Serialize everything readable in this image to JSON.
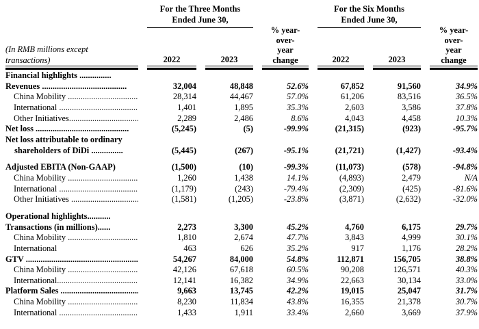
{
  "page": {
    "background": "#ffffff",
    "text_color": "#000000"
  },
  "header": {
    "three_months": {
      "line1": "For the Three Months",
      "line2": "Ended June 30,"
    },
    "six_months": {
      "line1": "For the Six Months",
      "line2": "Ended June 30,"
    },
    "pct_change_lines": [
      "% year-",
      "over-",
      "year",
      "change"
    ],
    "note_lines": [
      "(In RMB millions except",
      "transactions)"
    ],
    "years": {
      "tm_2022": "2022",
      "tm_2023": "2023",
      "sm_2022": "2022",
      "sm_2023": "2023"
    }
  },
  "table": {
    "column_keys": [
      "tm_2022",
      "tm_2023",
      "tm_pct_change",
      "sm_2022",
      "sm_2023",
      "sm_pct_change"
    ],
    "rows": [
      {
        "type": "data",
        "bold": true,
        "indent": 0,
        "label": "Financial highlights ...............",
        "values": [
          "",
          "",
          "",
          "",
          "",
          ""
        ]
      },
      {
        "type": "data",
        "bold": true,
        "indent": 0,
        "label": "Revenues ........................................",
        "values": [
          "32,004",
          "48,848",
          "52.6%",
          "67,852",
          "91,560",
          "34.9%"
        ]
      },
      {
        "type": "data",
        "bold": false,
        "indent": 1,
        "label": "China Mobility ....................................",
        "values": [
          "28,314",
          "44,467",
          "57.0%",
          "61,206",
          "83,516",
          "36.5%"
        ]
      },
      {
        "type": "data",
        "bold": false,
        "indent": 1,
        "label": "International .......................................",
        "values": [
          "1,401",
          "1,895",
          "35.3%",
          "2,603",
          "3,586",
          "37.8%"
        ]
      },
      {
        "type": "data",
        "bold": false,
        "indent": 1,
        "label": "Other Initiatives...................................",
        "values": [
          "2,289",
          "2,486",
          "8.6%",
          "4,043",
          "4,458",
          "10.3%"
        ]
      },
      {
        "type": "data",
        "bold": true,
        "indent": 0,
        "label": "Net loss ............................................",
        "values": [
          "(5,245)",
          "(5)",
          "-99.9%",
          "(21,315)",
          "(923)",
          "-95.7%"
        ]
      },
      {
        "type": "data",
        "bold": true,
        "indent": 0,
        "label_lines": [
          "Net loss attributable to ordinary",
          "shareholders of DiDi ..............."
        ],
        "values": [
          "(5,445)",
          "(267)",
          "-95.1%",
          "(21,721)",
          "(1,427)",
          "-93.4%"
        ]
      },
      {
        "type": "spacer"
      },
      {
        "type": "data",
        "bold": true,
        "indent": 0,
        "label": "Adjusted EBITA (Non-GAAP)",
        "values": [
          "(1,500)",
          "(10)",
          "-99.3%",
          "(11,073)",
          "(578)",
          "-94.8%"
        ]
      },
      {
        "type": "data",
        "bold": false,
        "indent": 1,
        "label": "China Mobility ....................................",
        "values": [
          "1,260",
          "1,438",
          "14.1%",
          "(4,893)",
          "2,479",
          "N/A"
        ]
      },
      {
        "type": "data",
        "bold": false,
        "indent": 1,
        "label": "International .......................................",
        "values": [
          "(1,179)",
          "(243)",
          "-79.4%",
          "(2,309)",
          "(425)",
          "-81.6%"
        ]
      },
      {
        "type": "data",
        "bold": false,
        "indent": 1,
        "label": "Other Initiatives ..................................",
        "values": [
          "(1,581)",
          "(1,205)",
          "-23.8%",
          "(3,871)",
          "(2,632)",
          "-32.0%"
        ]
      },
      {
        "type": "spacer"
      },
      {
        "type": "data",
        "bold": true,
        "indent": 0,
        "label": "Operational highlights...........",
        "values": [
          "",
          "",
          "",
          "",
          "",
          ""
        ]
      },
      {
        "type": "data",
        "bold": true,
        "indent": 0,
        "label": "Transactions (in millions)......",
        "values": [
          "2,273",
          "3,300",
          "45.2%",
          "4,760",
          "6,175",
          "29.7%"
        ]
      },
      {
        "type": "data",
        "bold": false,
        "indent": 1,
        "label": "China Mobility ....................................",
        "values": [
          "1,810",
          "2,674",
          "47.7%",
          "3,843",
          "4,999",
          "30.1%"
        ]
      },
      {
        "type": "data",
        "bold": false,
        "indent": 1,
        "label": "International",
        "values": [
          "463",
          "626",
          "35.2%",
          "917",
          "1,176",
          "28.2%"
        ]
      },
      {
        "type": "data",
        "bold": true,
        "indent": 0,
        "label": "GTV ...................................................................",
        "values": [
          "54,267",
          "84,000",
          "54.8%",
          "112,871",
          "156,705",
          "38.8%"
        ]
      },
      {
        "type": "data",
        "bold": false,
        "indent": 1,
        "label": "China Mobility ....................................",
        "values": [
          "42,126",
          "67,618",
          "60.5%",
          "90,208",
          "126,571",
          "40.3%"
        ]
      },
      {
        "type": "data",
        "bold": false,
        "indent": 1,
        "label": "International........................................",
        "values": [
          "12,141",
          "16,382",
          "34.9%",
          "22,663",
          "30,134",
          "33.0%"
        ]
      },
      {
        "type": "data",
        "bold": true,
        "indent": 0,
        "label": "Platform Sales ......................................",
        "values": [
          "9,663",
          "13,745",
          "42.2%",
          "19,015",
          "25,047",
          "31.7%"
        ]
      },
      {
        "type": "data",
        "bold": false,
        "indent": 1,
        "label": "China Mobility ....................................",
        "values": [
          "8,230",
          "11,834",
          "43.8%",
          "16,355",
          "21,378",
          "30.7%"
        ]
      },
      {
        "type": "data",
        "bold": false,
        "indent": 1,
        "label": "International .......................................",
        "values": [
          "1,433",
          "1,911",
          "33.4%",
          "2,660",
          "3,669",
          "37.9%"
        ]
      }
    ]
  }
}
